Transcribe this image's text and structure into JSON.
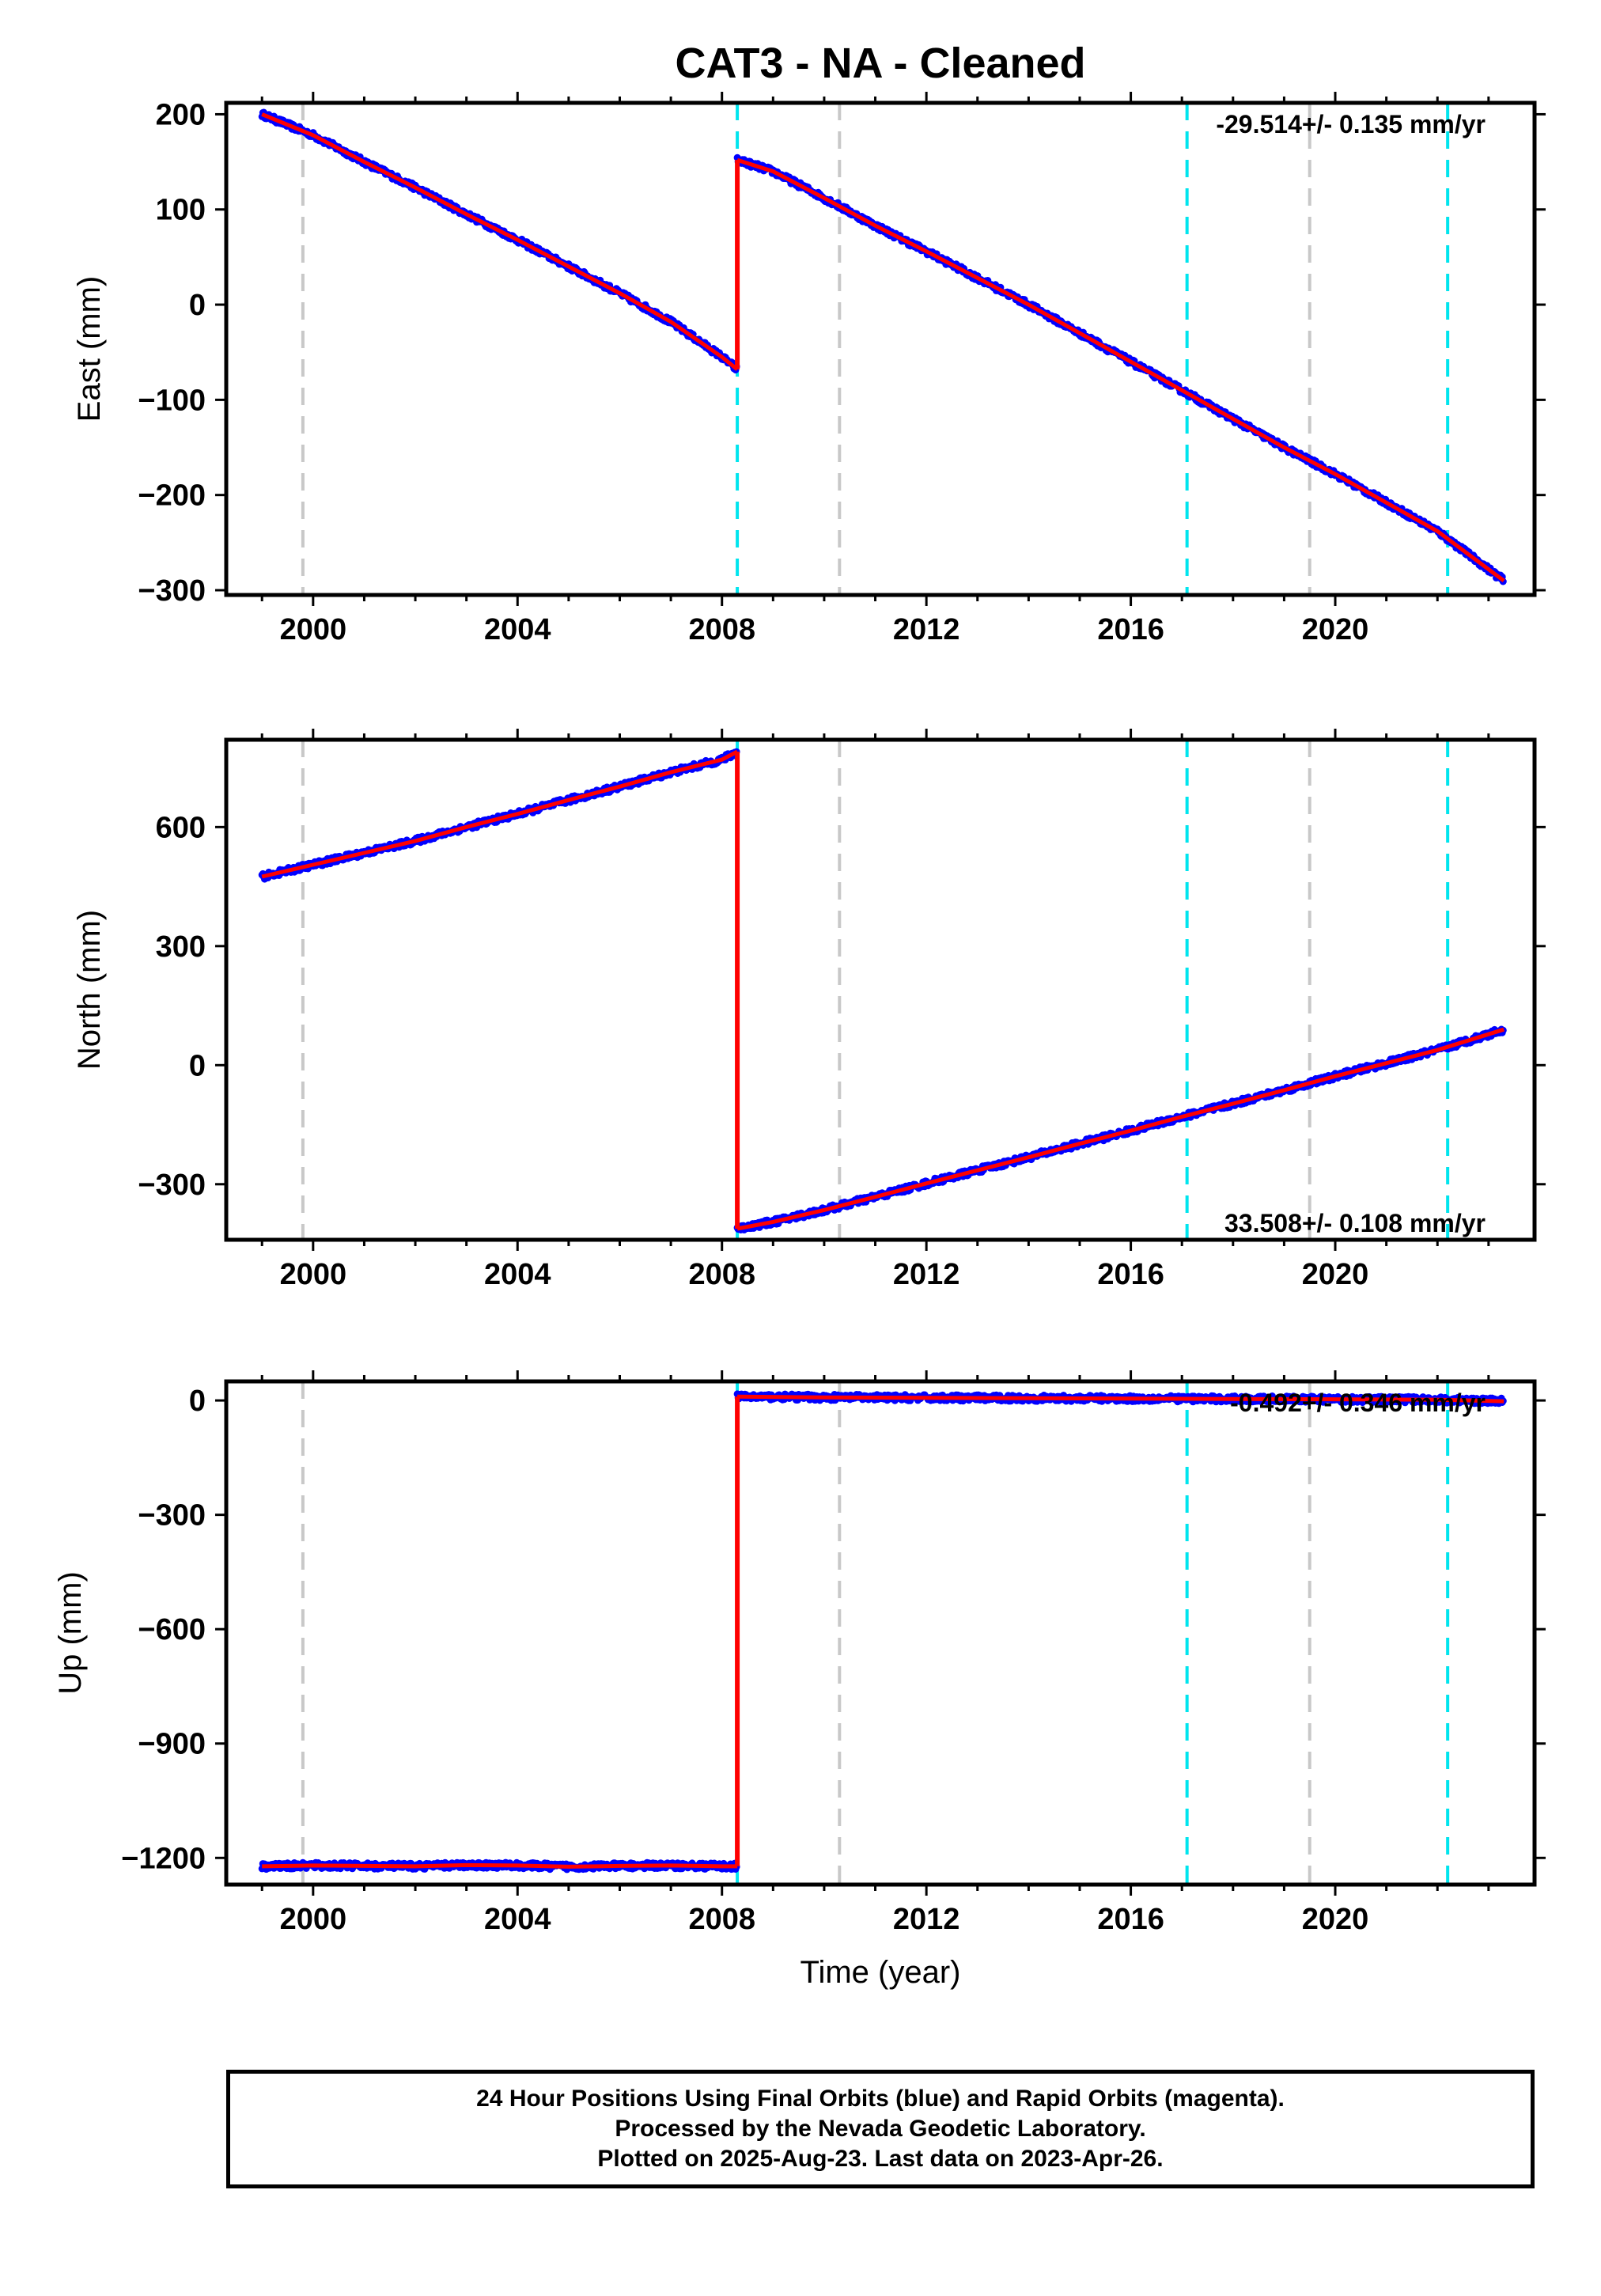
{
  "colors": {
    "final_points": "#0000ff",
    "model_line": "#ff0000",
    "equipment_change": "#00e5ee",
    "other_event": "#c8c8c8",
    "axes": "#000000"
  },
  "footer": {
    "line1": "24 Hour Positions Using Final Orbits (blue) and Rapid Orbits (magenta).",
    "line2": "Processed by the Nevada Geodetic Laboratory.",
    "line3": "Plotted on 2025-Aug-23. Last data on 2023-Apr-26."
  },
  "chart_data": [
    {
      "type": "scatter",
      "component": "east",
      "title": "CAT3  - NA - Cleaned",
      "xlabel": "",
      "ylabel": "East (mm)",
      "xlim": [
        1998.3,
        2023.9
      ],
      "ylim": [
        -305,
        212
      ],
      "xticks": [
        2000,
        2004,
        2008,
        2012,
        2016,
        2020
      ],
      "yticks": [
        -300,
        -200,
        -100,
        0,
        100,
        200
      ],
      "rate_label": "-29.514+/- 0.135 mm/yr",
      "rate_position": "top-right",
      "segments": [
        {
          "x": [
            1999.0,
            2000.0,
            2001.0,
            2002.0,
            2003.0,
            2004.0,
            2005.0,
            2006.0,
            2007.0,
            2008.0,
            2008.3
          ],
          "y": [
            200,
            178,
            150,
            123,
            95,
            68,
            40,
            12,
            -18,
            -55,
            -68
          ]
        },
        {
          "x": [
            2008.3,
            2009.0,
            2010.0,
            2011.0,
            2012.0,
            2013.0,
            2014.0,
            2015.0,
            2016.0,
            2017.0,
            2018.0,
            2019.0,
            2020.0,
            2021.0,
            2022.0,
            2023.3
          ],
          "y": [
            152,
            140,
            112,
            83,
            56,
            28,
            0,
            -30,
            -60,
            -90,
            -120,
            -150,
            -178,
            -208,
            -238,
            -290
          ]
        }
      ],
      "offsets": [
        {
          "x": 2008.3,
          "from": -68,
          "to": 152
        }
      ],
      "events_equipment": [
        2008.3,
        2017.1,
        2022.2
      ],
      "events_other": [
        1999.8,
        2010.3,
        2019.5
      ]
    },
    {
      "type": "scatter",
      "component": "north",
      "title": "",
      "xlabel": "",
      "ylabel": "North (mm)",
      "xlim": [
        1998.3,
        2023.9
      ],
      "ylim": [
        -440,
        820
      ],
      "xticks": [
        2000,
        2004,
        2008,
        2012,
        2016,
        2020
      ],
      "yticks": [
        -300,
        0,
        300,
        600
      ],
      "rate_label": "33.508+/- 0.108 mm/yr",
      "rate_position": "bottom-right",
      "segments": [
        {
          "x": [
            1999.0,
            2000.0,
            2001.0,
            2002.0,
            2003.0,
            2004.0,
            2005.0,
            2006.0,
            2007.0,
            2008.0,
            2008.3
          ],
          "y": [
            475,
            505,
            535,
            565,
            600,
            633,
            668,
            702,
            738,
            770,
            790
          ]
        },
        {
          "x": [
            2008.3,
            2009.0,
            2010.0,
            2011.0,
            2012.0,
            2013.0,
            2014.0,
            2015.0,
            2016.0,
            2017.0,
            2018.0,
            2019.0,
            2020.0,
            2021.0,
            2022.0,
            2023.3
          ],
          "y": [
            -412,
            -395,
            -365,
            -332,
            -298,
            -265,
            -232,
            -198,
            -165,
            -130,
            -97,
            -63,
            -28,
            5,
            38,
            90
          ]
        }
      ],
      "offsets": [
        {
          "x": 2008.3,
          "from": 790,
          "to": -412
        }
      ],
      "events_equipment": [
        2008.3,
        2017.1,
        2022.2
      ],
      "events_other": [
        1999.8,
        2010.3,
        2019.5
      ]
    },
    {
      "type": "scatter",
      "component": "up",
      "title": "",
      "xlabel": "Time (year)",
      "ylabel": "Up (mm)",
      "xlim": [
        1998.3,
        2023.9
      ],
      "ylim": [
        -1270,
        50
      ],
      "xticks": [
        2000,
        2004,
        2008,
        2012,
        2016,
        2020
      ],
      "yticks": [
        -1200,
        -900,
        -600,
        -300,
        0
      ],
      "rate_label": "-0.492+/- 0.346 mm/yr",
      "rate_position": "top-right",
      "segments": [
        {
          "x": [
            1999.0,
            2000.0,
            2001.0,
            2002.0,
            2003.0,
            2004.0,
            2005.0,
            2006.0,
            2007.0,
            2008.0,
            2008.3
          ],
          "y": [
            -1222,
            -1220,
            -1221,
            -1222,
            -1219,
            -1220,
            -1223,
            -1221,
            -1220,
            -1222,
            -1222
          ]
        },
        {
          "x": [
            2008.3,
            2010.0,
            2012.0,
            2014.0,
            2016.0,
            2018.0,
            2020.0,
            2022.0,
            2023.3
          ],
          "y": [
            10,
            8,
            7,
            6,
            5,
            4,
            3,
            2,
            -2
          ]
        }
      ],
      "offsets": [
        {
          "x": 2008.3,
          "from": -1222,
          "to": 10
        }
      ],
      "events_equipment": [
        2008.3,
        2017.1,
        2022.2
      ],
      "events_other": [
        1999.8,
        2010.3,
        2019.5
      ]
    }
  ]
}
